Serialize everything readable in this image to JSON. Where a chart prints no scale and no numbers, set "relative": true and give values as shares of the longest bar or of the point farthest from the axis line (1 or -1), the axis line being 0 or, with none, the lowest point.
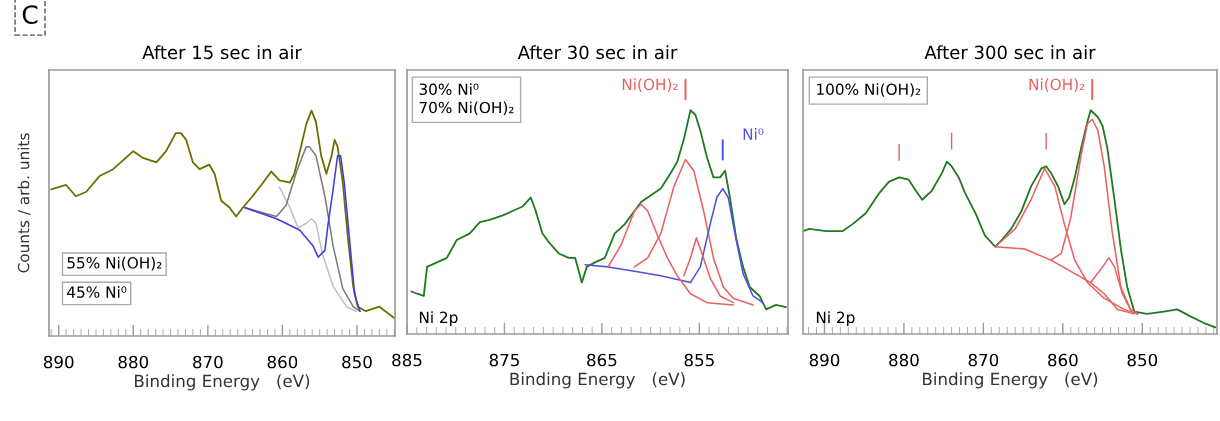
{
  "chart_data": [
    {
      "type": "line",
      "relative": true,
      "title": "After 15 sec in air",
      "xlabel": "Binding Energy   (eV)",
      "ylabel": "Counts / arb. units",
      "xlim": [
        891.3,
        844.9
      ],
      "xticks": [
        890,
        880,
        870,
        860,
        850
      ],
      "annotations": [
        "C",
        "55% Ni(OH)₂",
        "45% Ni⁰"
      ],
      "series": [
        {
          "color": "#c0c0c0",
          "x": [
            860.4,
            859.0,
            857.9,
            856.8,
            856.1,
            855.5,
            854.6,
            853.2,
            851.4,
            850.1
          ],
          "values": [
            0.66,
            0.57,
            0.48,
            0.5,
            0.52,
            0.5,
            0.36,
            0.22,
            0.13,
            0.11
          ]
        },
        {
          "color": "#7a7a7a",
          "x": [
            865.1,
            860.8,
            859.5,
            858.1,
            856.8,
            856.4,
            855.5,
            854.3,
            853.2,
            851.9,
            850.5,
            849.6
          ],
          "values": [
            0.57,
            0.53,
            0.58,
            0.73,
            0.84,
            0.84,
            0.8,
            0.62,
            0.4,
            0.21,
            0.13,
            0.11
          ]
        },
        {
          "color": "#3c3ce6",
          "x": [
            865.1,
            860.8,
            857.7,
            855.9,
            855.2,
            854.3,
            853.9,
            853.2,
            852.6,
            852.2,
            851.7,
            851.0,
            850.3,
            849.6
          ],
          "values": [
            0.57,
            0.52,
            0.47,
            0.4,
            0.35,
            0.38,
            0.49,
            0.65,
            0.8,
            0.8,
            0.68,
            0.43,
            0.18,
            0.11
          ]
        },
        {
          "color": "#6e6e00",
          "x": [
            891.0,
            889.0,
            887.7,
            886.3,
            884.5,
            882.7,
            881.0,
            880.0,
            878.7,
            876.9,
            875.6,
            874.3,
            873.6,
            872.9,
            872.0,
            871.1,
            869.8,
            869.1,
            868.2,
            867.1,
            866.2,
            865.3,
            864.0,
            862.6,
            861.5,
            860.4,
            859.0,
            858.4,
            857.5,
            856.8,
            856.1,
            855.5,
            854.8,
            854.1,
            853.4,
            853.0,
            852.6,
            851.9,
            851.2,
            850.5,
            849.9,
            848.8,
            847.0,
            845.0
          ],
          "values": [
            0.65,
            0.67,
            0.62,
            0.64,
            0.71,
            0.74,
            0.79,
            0.82,
            0.79,
            0.77,
            0.82,
            0.9,
            0.9,
            0.87,
            0.77,
            0.74,
            0.76,
            0.72,
            0.6,
            0.57,
            0.53,
            0.57,
            0.62,
            0.68,
            0.73,
            0.69,
            0.68,
            0.72,
            0.84,
            0.94,
            1.0,
            0.95,
            0.8,
            0.72,
            0.8,
            0.87,
            0.84,
            0.68,
            0.43,
            0.22,
            0.13,
            0.11,
            0.13,
            0.08
          ]
        }
      ]
    },
    {
      "type": "line",
      "relative": true,
      "title": "After 30 sec in air",
      "xlabel": "Binding Energy   (eV)",
      "xlim": [
        885,
        845.9
      ],
      "xticks": [
        885,
        875,
        865,
        855
      ],
      "annotations": [
        "30% Ni⁰\n70% Ni(OH)₂",
        "Ni 2p"
      ],
      "series": [
        {
          "color": "#5050e0",
          "x": [
            866.72,
            864.36,
            861.66,
            858.95,
            855.91
          ],
          "values": [
            0.31,
            0.3,
            0.28,
            0.26,
            0.23
          ]
        },
        {
          "color": "#e86060",
          "x": [
            864.36,
            863.01,
            861.66,
            860.98,
            860.3,
            859.29,
            858.28,
            857.26,
            855.91,
            854.22,
            851.52
          ],
          "values": [
            0.3,
            0.4,
            0.55,
            0.58,
            0.55,
            0.44,
            0.34,
            0.26,
            0.18,
            0.14,
            0.13
          ]
        },
        {
          "name": "Ni(OH)₂",
          "color": "#e86060",
          "x": [
            861.66,
            860.3,
            858.95,
            857.6,
            856.42,
            855.57,
            854.56,
            853.55,
            852.53,
            851.52,
            849.49
          ],
          "values": [
            0.3,
            0.34,
            0.45,
            0.66,
            0.78,
            0.73,
            0.55,
            0.34,
            0.21,
            0.16,
            0.13
          ]
        },
        {
          "name": "Ni⁰",
          "color": "#5050e0",
          "x": [
            855.91,
            854.9,
            853.89,
            853.21,
            852.6,
            852.03,
            851.35,
            850.51,
            849.49,
            848.48
          ],
          "values": [
            0.23,
            0.3,
            0.49,
            0.61,
            0.65,
            0.61,
            0.45,
            0.27,
            0.17,
            0.14
          ]
        },
        {
          "color": "#e86060",
          "x": [
            856.59,
            855.91,
            855.3,
            854.73,
            853.89,
            852.87,
            851.52
          ],
          "values": [
            0.26,
            0.34,
            0.43,
            0.36,
            0.25,
            0.17,
            0.14
          ]
        },
        {
          "color": "#1f7a1f",
          "x": [
            884.56,
            883.95,
            883.28,
            882.94,
            881.93,
            880.91,
            879.9,
            878.55,
            877.53,
            876.52,
            875.17,
            874.16,
            873.14,
            872.3,
            871.79,
            871.11,
            870.44,
            869.43,
            868.41,
            867.74,
            867.06,
            866.55,
            865.71,
            864.7,
            863.68,
            862.67,
            861.66,
            860.98,
            859.97,
            858.95,
            857.94,
            857.26,
            856.59,
            855.91,
            855.41,
            854.9,
            854.22,
            853.55,
            852.87,
            852.36,
            851.86,
            851.18,
            850.51,
            849.83,
            848.82,
            848.14,
            847.13,
            846.11
          ],
          "values": [
            0.19,
            0.18,
            0.17,
            0.3,
            0.32,
            0.34,
            0.42,
            0.45,
            0.5,
            0.51,
            0.53,
            0.55,
            0.57,
            0.61,
            0.55,
            0.45,
            0.41,
            0.36,
            0.34,
            0.34,
            0.23,
            0.3,
            0.32,
            0.34,
            0.45,
            0.49,
            0.55,
            0.59,
            0.62,
            0.65,
            0.72,
            0.77,
            0.87,
            1.0,
            0.98,
            0.91,
            0.79,
            0.7,
            0.7,
            0.73,
            0.61,
            0.42,
            0.3,
            0.21,
            0.17,
            0.11,
            0.13,
            0.12
          ]
        }
      ]
    },
    {
      "type": "line",
      "relative": true,
      "title": "After 300 sec in air",
      "xlabel": "Binding Energy   (eV)",
      "xlim": [
        892.7,
        840.6
      ],
      "xticks": [
        890,
        880,
        870,
        860,
        850
      ],
      "annotations": [
        "100% Ni(OH)₂",
        "Ni 2p",
        {
          "text": "|",
          "x": 880.6,
          "y": 0.7
        },
        {
          "text": "|",
          "x": 874.0,
          "y": 0.75
        },
        {
          "text": "|",
          "x": 862.1,
          "y": 0.75
        }
      ],
      "series": [
        {
          "color": "#e86060",
          "x": [
            868.5,
            864.8,
            861.5,
            858.5,
            856.5,
            854.8,
            853.1,
            851.0
          ],
          "values": [
            0.39,
            0.38,
            0.33,
            0.27,
            0.23,
            0.18,
            0.11,
            0.09
          ]
        },
        {
          "color": "#e86060",
          "x": [
            868.5,
            866.0,
            864.0,
            862.3,
            861.0,
            859.8,
            858.5,
            856.9,
            854.8,
            852.3,
            850.6
          ],
          "values": [
            0.39,
            0.47,
            0.6,
            0.74,
            0.66,
            0.49,
            0.33,
            0.23,
            0.16,
            0.11,
            0.09
          ]
        },
        {
          "name": "Ni(OH)₂",
          "color": "#e86060",
          "x": [
            861.5,
            860.2,
            859.0,
            857.7,
            856.9,
            856.3,
            855.6,
            854.8,
            853.8,
            852.7,
            851.5,
            850.6
          ],
          "values": [
            0.33,
            0.36,
            0.52,
            0.8,
            0.94,
            0.96,
            0.91,
            0.75,
            0.46,
            0.21,
            0.11,
            0.09
          ]
        },
        {
          "color": "#e86060",
          "x": [
            856.5,
            855.2,
            854.2,
            853.5,
            852.5,
            851.5,
            850.6
          ],
          "values": [
            0.23,
            0.29,
            0.34,
            0.3,
            0.18,
            0.11,
            0.09
          ]
        },
        {
          "color": "#1f7a1f",
          "x": [
            892.7,
            891.9,
            889.8,
            887.7,
            886.5,
            884.8,
            883.1,
            881.9,
            880.6,
            879.4,
            878.5,
            877.7,
            876.5,
            875.2,
            874.6,
            874.0,
            873.1,
            872.3,
            871.0,
            869.8,
            868.5,
            867.7,
            866.5,
            865.2,
            864.0,
            862.7,
            862.1,
            861.5,
            860.6,
            859.8,
            859.2,
            858.5,
            857.7,
            856.9,
            856.5,
            855.6,
            855.0,
            854.4,
            853.5,
            852.7,
            851.9,
            851.0,
            849.4,
            847.3,
            845.6,
            844.0,
            842.3,
            840.8
          ],
          "values": [
            0.46,
            0.47,
            0.46,
            0.46,
            0.49,
            0.54,
            0.63,
            0.68,
            0.7,
            0.69,
            0.64,
            0.6,
            0.64,
            0.72,
            0.77,
            0.75,
            0.7,
            0.63,
            0.54,
            0.44,
            0.39,
            0.42,
            0.47,
            0.55,
            0.66,
            0.74,
            0.75,
            0.72,
            0.66,
            0.58,
            0.61,
            0.7,
            0.83,
            0.95,
            1.0,
            0.97,
            0.93,
            0.83,
            0.6,
            0.38,
            0.21,
            0.1,
            0.09,
            0.1,
            0.11,
            0.08,
            0.05,
            0.03
          ]
        }
      ]
    }
  ]
}
